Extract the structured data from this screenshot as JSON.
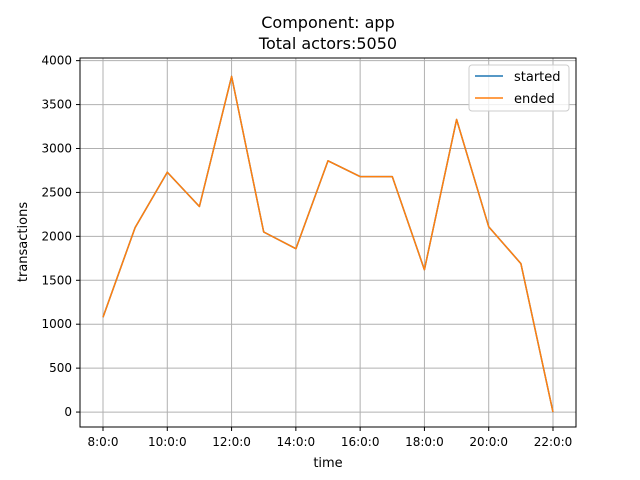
{
  "chart_data": {
    "type": "line",
    "title": "Component: app",
    "subtitle": "Total actors:5050",
    "xlabel": "time",
    "ylabel": "transactions",
    "x": [
      "8:0:0",
      "9:0:0",
      "10:0:0",
      "11:0:0",
      "12:0:0",
      "13:0:0",
      "14:0:0",
      "15:0:0",
      "16:0:0",
      "17:0:0",
      "18:0:0",
      "19:0:0",
      "20:0:0",
      "21:0:0",
      "22:0:0"
    ],
    "x_tick_labels": [
      "8:0:0",
      "10:0:0",
      "12:0:0",
      "14:0:0",
      "16:0:0",
      "18:0:0",
      "20:0:0",
      "22:0:0"
    ],
    "y_ticks": [
      0,
      500,
      1000,
      1500,
      2000,
      2500,
      3000,
      3500,
      4000
    ],
    "ylim": [
      -170,
      4030
    ],
    "grid": true,
    "legend_position": "top-right",
    "series": [
      {
        "name": "started",
        "color": "#1f77b4",
        "values": [
          1080,
          2100,
          2730,
          2340,
          3820,
          2050,
          1860,
          2860,
          2680,
          2680,
          1620,
          3330,
          2110,
          1690,
          0
        ]
      },
      {
        "name": "ended",
        "color": "#ff7f0e",
        "values": [
          1080,
          2100,
          2730,
          2340,
          3820,
          2050,
          1860,
          2860,
          2680,
          2680,
          1620,
          3330,
          2110,
          1690,
          0
        ]
      }
    ]
  }
}
